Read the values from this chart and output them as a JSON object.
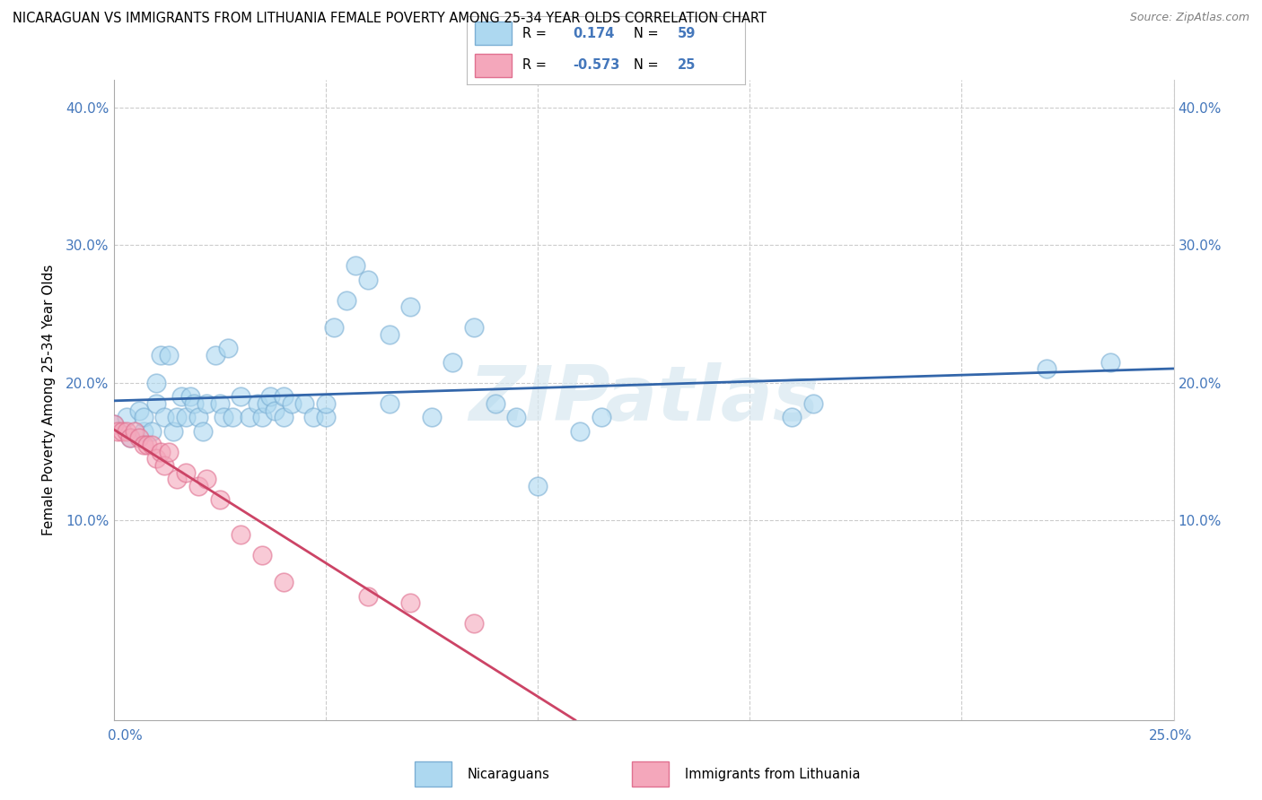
{
  "title": "NICARAGUAN VS IMMIGRANTS FROM LITHUANIA FEMALE POVERTY AMONG 25-34 YEAR OLDS CORRELATION CHART",
  "source": "Source: ZipAtlas.com",
  "ylabel": "Female Poverty Among 25-34 Year Olds",
  "xmin": 0.0,
  "xmax": 0.25,
  "ymin": -0.045,
  "ymax": 0.42,
  "blue_R": 0.174,
  "blue_N": 59,
  "pink_R": -0.573,
  "pink_N": 25,
  "blue_color": "#ADD8F0",
  "pink_color": "#F4A7BB",
  "blue_edge_color": "#7BAFD4",
  "pink_edge_color": "#E07090",
  "blue_line_color": "#3366AA",
  "pink_line_color": "#CC4466",
  "watermark_color": "#D8E8F0",
  "blue_scatter": [
    [
      0.0,
      0.17
    ],
    [
      0.003,
      0.175
    ],
    [
      0.004,
      0.16
    ],
    [
      0.006,
      0.18
    ],
    [
      0.007,
      0.165
    ],
    [
      0.007,
      0.175
    ],
    [
      0.009,
      0.165
    ],
    [
      0.01,
      0.185
    ],
    [
      0.01,
      0.2
    ],
    [
      0.011,
      0.22
    ],
    [
      0.012,
      0.175
    ],
    [
      0.013,
      0.22
    ],
    [
      0.014,
      0.165
    ],
    [
      0.015,
      0.175
    ],
    [
      0.016,
      0.19
    ],
    [
      0.017,
      0.175
    ],
    [
      0.018,
      0.19
    ],
    [
      0.019,
      0.185
    ],
    [
      0.02,
      0.175
    ],
    [
      0.021,
      0.165
    ],
    [
      0.022,
      0.185
    ],
    [
      0.024,
      0.22
    ],
    [
      0.025,
      0.185
    ],
    [
      0.026,
      0.175
    ],
    [
      0.027,
      0.225
    ],
    [
      0.028,
      0.175
    ],
    [
      0.03,
      0.19
    ],
    [
      0.032,
      0.175
    ],
    [
      0.034,
      0.185
    ],
    [
      0.035,
      0.175
    ],
    [
      0.036,
      0.185
    ],
    [
      0.037,
      0.19
    ],
    [
      0.038,
      0.18
    ],
    [
      0.04,
      0.19
    ],
    [
      0.04,
      0.175
    ],
    [
      0.042,
      0.185
    ],
    [
      0.045,
      0.185
    ],
    [
      0.047,
      0.175
    ],
    [
      0.05,
      0.175
    ],
    [
      0.05,
      0.185
    ],
    [
      0.052,
      0.24
    ],
    [
      0.055,
      0.26
    ],
    [
      0.057,
      0.285
    ],
    [
      0.06,
      0.275
    ],
    [
      0.065,
      0.185
    ],
    [
      0.065,
      0.235
    ],
    [
      0.07,
      0.255
    ],
    [
      0.075,
      0.175
    ],
    [
      0.08,
      0.215
    ],
    [
      0.085,
      0.24
    ],
    [
      0.09,
      0.185
    ],
    [
      0.095,
      0.175
    ],
    [
      0.1,
      0.125
    ],
    [
      0.11,
      0.165
    ],
    [
      0.115,
      0.175
    ],
    [
      0.16,
      0.175
    ],
    [
      0.165,
      0.185
    ],
    [
      0.22,
      0.21
    ],
    [
      0.235,
      0.215
    ]
  ],
  "pink_scatter": [
    [
      0.0,
      0.17
    ],
    [
      0.001,
      0.165
    ],
    [
      0.002,
      0.165
    ],
    [
      0.003,
      0.165
    ],
    [
      0.004,
      0.16
    ],
    [
      0.005,
      0.165
    ],
    [
      0.006,
      0.16
    ],
    [
      0.007,
      0.155
    ],
    [
      0.008,
      0.155
    ],
    [
      0.009,
      0.155
    ],
    [
      0.01,
      0.145
    ],
    [
      0.011,
      0.15
    ],
    [
      0.012,
      0.14
    ],
    [
      0.013,
      0.15
    ],
    [
      0.015,
      0.13
    ],
    [
      0.017,
      0.135
    ],
    [
      0.02,
      0.125
    ],
    [
      0.022,
      0.13
    ],
    [
      0.025,
      0.115
    ],
    [
      0.03,
      0.09
    ],
    [
      0.035,
      0.075
    ],
    [
      0.04,
      0.055
    ],
    [
      0.06,
      0.045
    ],
    [
      0.07,
      0.04
    ],
    [
      0.085,
      0.025
    ]
  ]
}
